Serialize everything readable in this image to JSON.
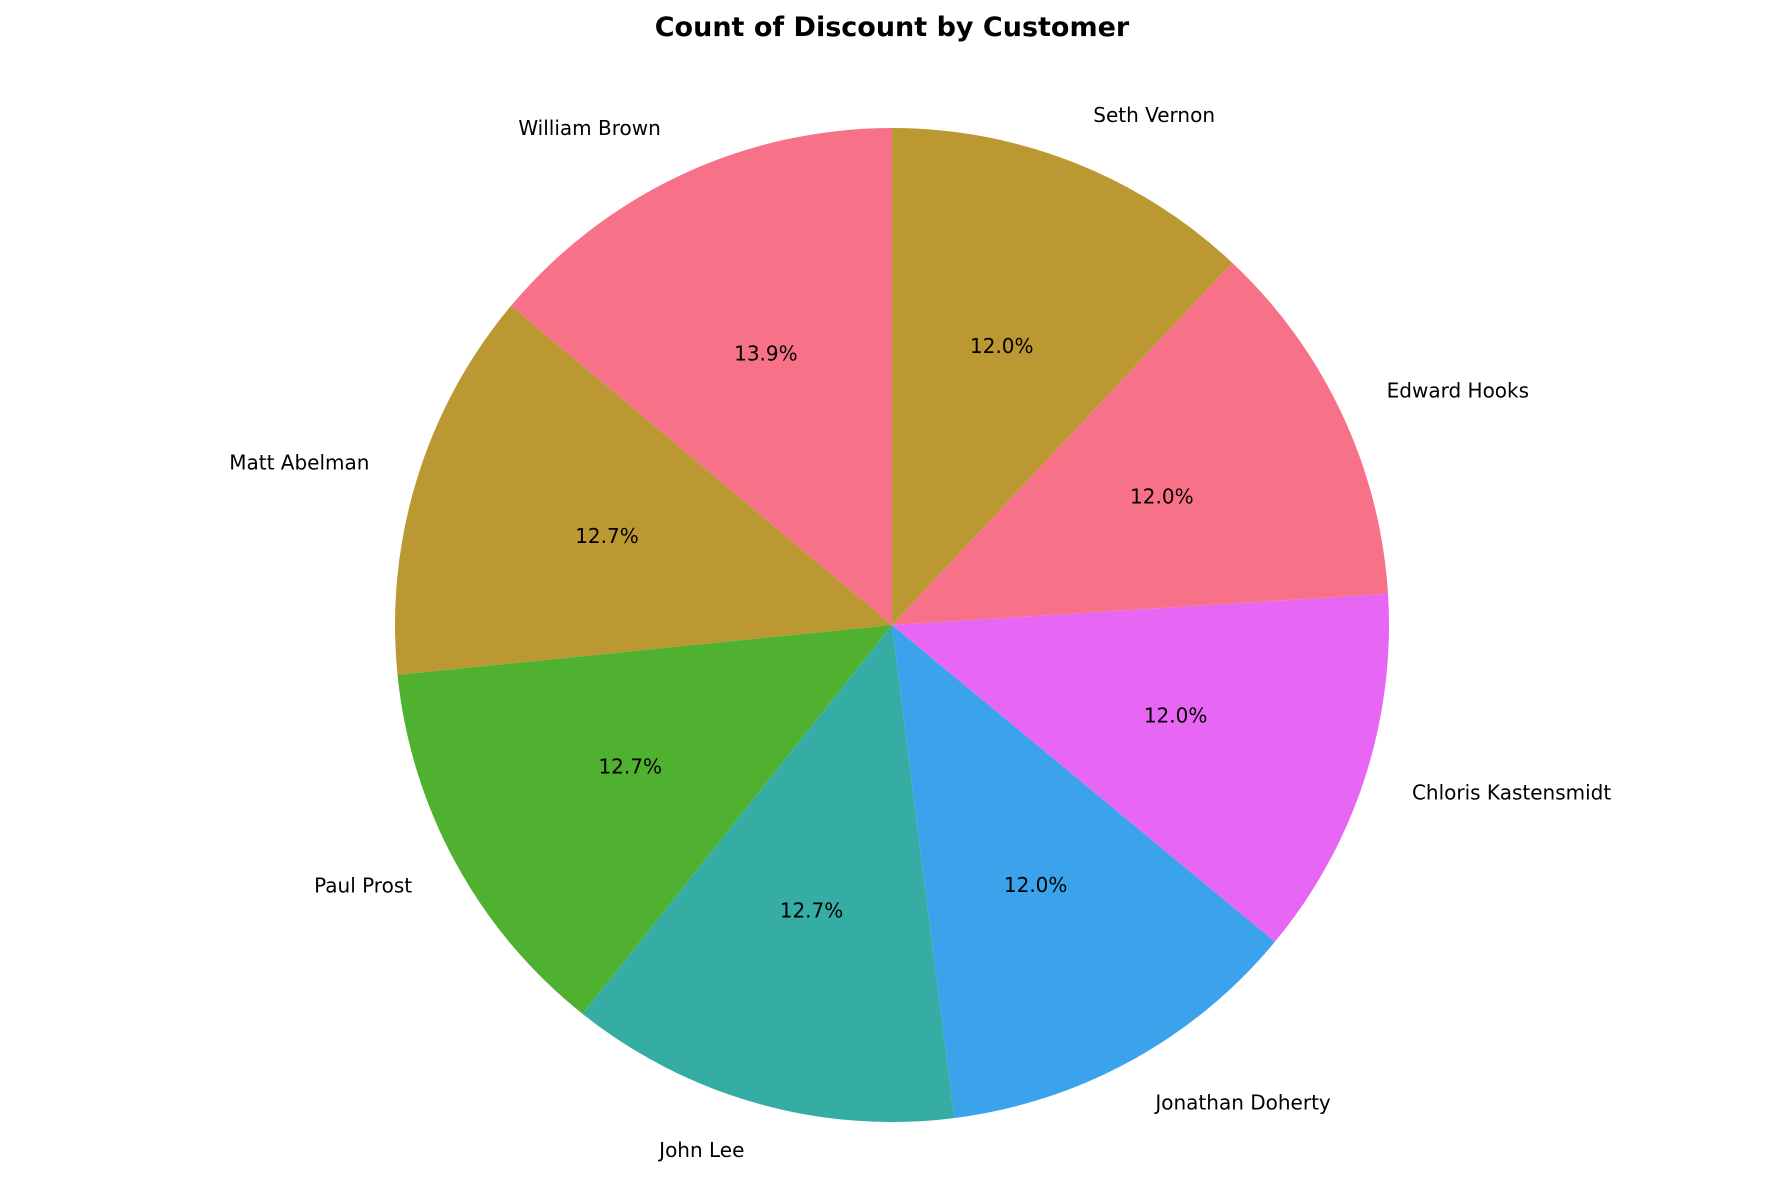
{
  "chart_data": {
    "type": "pie",
    "title": "Count of Discount by Customer",
    "start_angle_deg": 90,
    "direction": "counterclockwise",
    "slices": [
      {
        "label": "William Brown",
        "value": 13.9,
        "pct_label": "13.9%",
        "color": "#f77189"
      },
      {
        "label": "Matt Abelman",
        "value": 12.7,
        "pct_label": "12.7%",
        "color": "#bb9832"
      },
      {
        "label": "Paul Prost",
        "value": 12.7,
        "pct_label": "12.7%",
        "color": "#50b131"
      },
      {
        "label": "John Lee",
        "value": 12.7,
        "pct_label": "12.7%",
        "color": "#36ada4"
      },
      {
        "label": "Jonathan Doherty",
        "value": 12.0,
        "pct_label": "12.0%",
        "color": "#3ba3ec"
      },
      {
        "label": "Chloris Kastensmidt",
        "value": 12.0,
        "pct_label": "12.0%",
        "color": "#e866f4"
      },
      {
        "label": "Edward Hooks",
        "value": 12.0,
        "pct_label": "12.0%",
        "color": "#f77189"
      },
      {
        "label": "Seth Vernon",
        "value": 12.0,
        "pct_label": "12.0%",
        "color": "#bb9832"
      }
    ]
  }
}
